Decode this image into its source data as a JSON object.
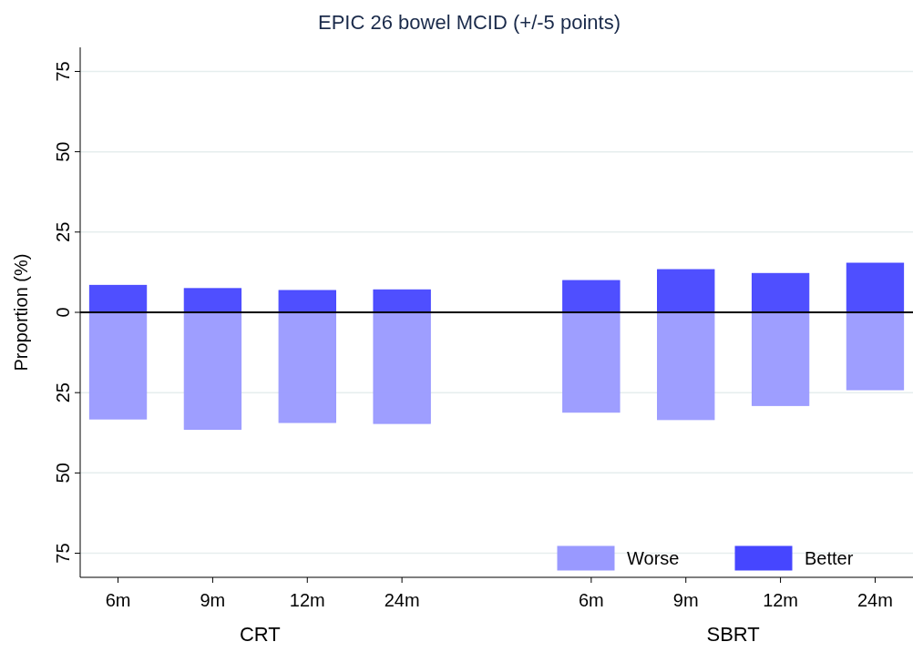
{
  "chart_data": {
    "type": "bar",
    "title": "EPIC 26 bowel MCID (+/-5 points)",
    "ylabel": "Proportion (%)",
    "categories": [
      "6m",
      "9m",
      "12m",
      "24m",
      null,
      "6m",
      "9m",
      "12m",
      "24m"
    ],
    "series": [
      {
        "name": "Worse",
        "color": "#9999ff",
        "values": [
          -33.2,
          -36.4,
          -34.3,
          -34.6,
          null,
          -31.1,
          -33.4,
          -29.0,
          -24.1
        ]
      },
      {
        "name": "Better",
        "color": "#4646ff",
        "values": [
          8.4,
          7.4,
          6.8,
          7.0,
          null,
          9.9,
          13.3,
          12.1,
          15.3
        ]
      }
    ],
    "stacked": true,
    "ylim": [
      -82.5,
      82.5
    ],
    "yticks": [
      {
        "value": -75,
        "label": "75"
      },
      {
        "value": -50,
        "label": "50"
      },
      {
        "value": -25,
        "label": "25"
      },
      0,
      25,
      50,
      75
    ],
    "grid": "y",
    "legend": "bottom right",
    "ref_lines": [
      {
        "axis": "y",
        "value": 0,
        "color": "#000000"
      }
    ],
    "annotations": [
      "CRT",
      "SBRT"
    ]
  }
}
